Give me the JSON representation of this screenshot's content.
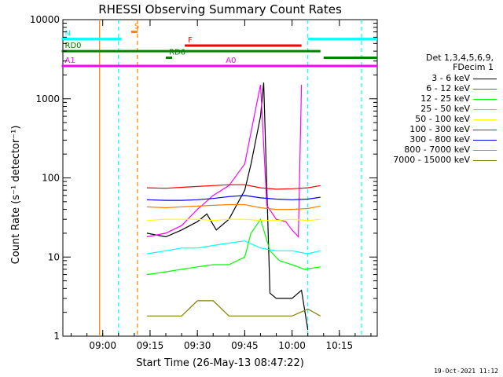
{
  "chart_data": {
    "type": "line",
    "title": "RHESSI Observing Summary Count Rates",
    "xlabel": "Start Time (26-May-13 08:47:22)",
    "ylabel": "Count Rate (s⁻¹ detector⁻¹)",
    "y_scale": "log",
    "ylim": [
      1,
      10000
    ],
    "xlim": [
      "08:47:22",
      "10:27:00"
    ],
    "x_ticks": [
      "09:00",
      "09:15",
      "09:30",
      "09:45",
      "10:00",
      "10:15"
    ],
    "y_ticks": [
      "1",
      "10",
      "100",
      "1000",
      "10000"
    ],
    "legend": {
      "title_lines": [
        "Det 1,3,4,5,6,9,",
        "FDecim 1"
      ],
      "position": "right"
    },
    "series": [
      {
        "name": "3 - 6 keV",
        "color": "#000000",
        "points": [
          [
            "09:14",
            20
          ],
          [
            "09:20",
            18
          ],
          [
            "09:25",
            22
          ],
          [
            "09:30",
            28
          ],
          [
            "09:33",
            35
          ],
          [
            "09:36",
            22
          ],
          [
            "09:40",
            30
          ],
          [
            "09:45",
            70
          ],
          [
            "09:47",
            150
          ],
          [
            "09:50",
            600
          ],
          [
            "09:51",
            1600
          ],
          [
            "09:53",
            3.5
          ],
          [
            "09:55",
            3.0
          ],
          [
            "10:00",
            3.0
          ],
          [
            "10:03",
            3.8
          ],
          [
            "10:05",
            1.2
          ]
        ]
      },
      {
        "name": "6 - 12 keV",
        "color": "#ff00ff",
        "points": [
          [
            "09:14",
            18
          ],
          [
            "09:20",
            20
          ],
          [
            "09:25",
            25
          ],
          [
            "09:30",
            40
          ],
          [
            "09:35",
            60
          ],
          [
            "09:40",
            80
          ],
          [
            "09:45",
            150
          ],
          [
            "09:48",
            600
          ],
          [
            "09:50",
            1500
          ],
          [
            "09:52",
            45
          ],
          [
            "09:55",
            30
          ],
          [
            "09:58",
            28
          ],
          [
            "10:00",
            22
          ],
          [
            "10:02",
            18
          ],
          [
            "10:03",
            1500
          ]
        ]
      },
      {
        "name": "12 - 25 keV",
        "color": "#00ff00",
        "points": [
          [
            "09:14",
            6
          ],
          [
            "09:20",
            6.5
          ],
          [
            "09:25",
            7
          ],
          [
            "09:30",
            7.5
          ],
          [
            "09:35",
            8
          ],
          [
            "09:40",
            8
          ],
          [
            "09:45",
            10
          ],
          [
            "09:47",
            20
          ],
          [
            "09:50",
            30
          ],
          [
            "09:53",
            12
          ],
          [
            "09:56",
            9
          ],
          [
            "10:00",
            8
          ],
          [
            "10:04",
            7
          ],
          [
            "10:09",
            7.5
          ]
        ]
      },
      {
        "name": "25 - 50 keV",
        "color": "#00ffff",
        "points": [
          [
            "09:14",
            11
          ],
          [
            "09:20",
            12
          ],
          [
            "09:25",
            13
          ],
          [
            "09:30",
            13
          ],
          [
            "09:35",
            14
          ],
          [
            "09:40",
            15
          ],
          [
            "09:45",
            16
          ],
          [
            "09:50",
            13
          ],
          [
            "09:55",
            12
          ],
          [
            "10:00",
            12
          ],
          [
            "10:05",
            11
          ],
          [
            "10:09",
            12
          ]
        ]
      },
      {
        "name": "50 - 100 keV",
        "color": "#ffff00",
        "points": [
          [
            "09:14",
            29
          ],
          [
            "09:20",
            30
          ],
          [
            "09:25",
            30
          ],
          [
            "09:30",
            30
          ],
          [
            "09:35",
            29
          ],
          [
            "09:40",
            30
          ],
          [
            "09:45",
            30
          ],
          [
            "09:50",
            29
          ],
          [
            "09:55",
            29
          ],
          [
            "10:00",
            30
          ],
          [
            "10:05",
            29
          ],
          [
            "10:09",
            30
          ]
        ]
      },
      {
        "name": "100 - 300 keV",
        "color": "#ff0000",
        "points": [
          [
            "09:14",
            75
          ],
          [
            "09:20",
            74
          ],
          [
            "09:25",
            76
          ],
          [
            "09:30",
            78
          ],
          [
            "09:35",
            80
          ],
          [
            "09:40",
            82
          ],
          [
            "09:45",
            82
          ],
          [
            "09:50",
            75
          ],
          [
            "09:55",
            72
          ],
          [
            "10:00",
            73
          ],
          [
            "10:05",
            75
          ],
          [
            "10:09",
            80
          ]
        ]
      },
      {
        "name": "300 - 800 keV",
        "color": "#0000ff",
        "points": [
          [
            "09:14",
            53
          ],
          [
            "09:20",
            52
          ],
          [
            "09:25",
            52
          ],
          [
            "09:30",
            53
          ],
          [
            "09:35",
            55
          ],
          [
            "09:40",
            58
          ],
          [
            "09:45",
            60
          ],
          [
            "09:50",
            56
          ],
          [
            "09:55",
            54
          ],
          [
            "10:00",
            53
          ],
          [
            "10:05",
            54
          ],
          [
            "10:09",
            57
          ]
        ]
      },
      {
        "name": "800 - 7000 keV",
        "color": "#ff8000",
        "points": [
          [
            "09:14",
            43
          ],
          [
            "09:20",
            42
          ],
          [
            "09:25",
            43
          ],
          [
            "09:30",
            44
          ],
          [
            "09:35",
            45
          ],
          [
            "09:40",
            46
          ],
          [
            "09:45",
            46
          ],
          [
            "09:50",
            42
          ],
          [
            "09:55",
            40
          ],
          [
            "10:00",
            40
          ],
          [
            "10:05",
            41
          ],
          [
            "10:09",
            44
          ]
        ]
      },
      {
        "name": "7000 - 15000 keV",
        "color": "#808000",
        "points": [
          [
            "09:14",
            1.8
          ],
          [
            "09:20",
            1.8
          ],
          [
            "09:25",
            1.8
          ],
          [
            "09:30",
            2.8
          ],
          [
            "09:35",
            2.8
          ],
          [
            "09:40",
            1.8
          ],
          [
            "09:45",
            1.8
          ],
          [
            "09:50",
            1.8
          ],
          [
            "09:55",
            1.8
          ],
          [
            "10:00",
            1.8
          ],
          [
            "10:05",
            2.2
          ],
          [
            "10:09",
            1.8
          ]
        ]
      }
    ],
    "flag_bars": [
      {
        "label": "S",
        "color": "#ff8000",
        "y": 7000,
        "x_start": "09:09",
        "x_end": "09:11"
      },
      {
        "label": "N",
        "color": "#00ffff",
        "y": 5700,
        "x_start": "08:47",
        "x_end": "09:06"
      },
      {
        "label": "",
        "color": "#00ffff",
        "y": 5700,
        "x_start": "10:05",
        "x_end": "10:27"
      },
      {
        "label": "F",
        "color": "#ff0000",
        "y": 4700,
        "x_start": "09:26",
        "x_end": "10:03"
      },
      {
        "label": "RD0",
        "color": "#008000",
        "y": 4000,
        "x_start": "08:47",
        "x_end": "10:09"
      },
      {
        "label": "",
        "color": "#008000",
        "y": 3300,
        "x_start": "10:10",
        "x_end": "10:27"
      },
      {
        "label": "RD6",
        "color": "#008000",
        "y": 3300,
        "x_start": "09:20",
        "x_end": "09:22"
      },
      {
        "label": "A0",
        "color": "#ff00ff",
        "y": 2600,
        "x_start": "09:38",
        "x_end": "09:40"
      },
      {
        "label": "A1",
        "color": "#ff00ff",
        "y": 2600,
        "x_start": "08:47",
        "x_end": "10:27"
      }
    ],
    "vertical_markers": [
      {
        "color": "#ff8000",
        "style": "solid",
        "x": "08:59"
      },
      {
        "color": "#00ffff",
        "style": "dashed",
        "x": "09:05"
      },
      {
        "color": "#ff8000",
        "style": "dashed",
        "x": "09:11"
      },
      {
        "color": "#00ffff",
        "style": "dashed",
        "x": "10:05"
      },
      {
        "color": "#00ffff",
        "style": "dashed",
        "x": "10:22"
      }
    ]
  },
  "footer_date": "19-Oct-2021 11:12"
}
